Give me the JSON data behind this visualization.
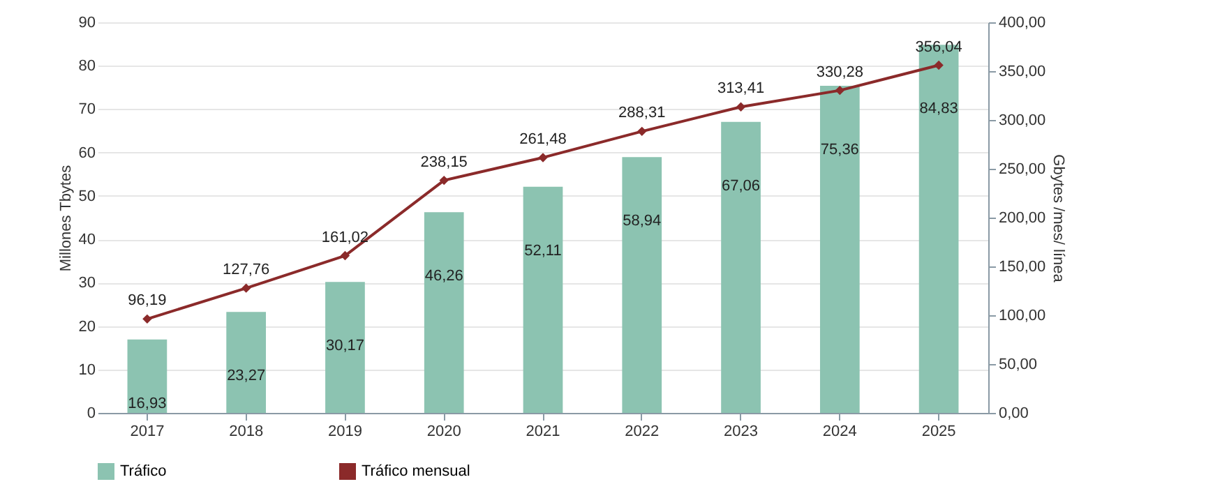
{
  "chart_data": {
    "type": "bar",
    "categories": [
      "2017",
      "2018",
      "2019",
      "2020",
      "2021",
      "2022",
      "2023",
      "2024",
      "2025"
    ],
    "ylabel": "Millones Tbytes",
    "y2label": "Gbytes /mes/ línea",
    "series": [
      {
        "name": "Tráfico",
        "color": "#8cc3b1",
        "values": [
          16.93,
          23.27,
          30.17,
          46.26,
          52.11,
          58.94,
          67.06,
          75.36,
          84.83
        ],
        "value_labels": [
          "16,93",
          "23,27",
          "30,17",
          "46,26",
          "52,11",
          "58,94",
          "67,06",
          "75,36",
          "84,83"
        ]
      },
      {
        "name": "Tráfico mensual",
        "type": "line",
        "axis": "y2",
        "marker": "diamond",
        "color": "#8b2a2a",
        "values": [
          96.19,
          127.76,
          161.02,
          238.15,
          261.48,
          288.31,
          313.41,
          330.28,
          356.04
        ],
        "value_labels": [
          "96,19",
          "127,76",
          "161,02",
          "238,15",
          "261,48",
          "288,31",
          "313,41",
          "330,28",
          "356,04"
        ]
      }
    ],
    "ylim": [
      0,
      90
    ],
    "yticks": [
      0,
      10,
      20,
      30,
      40,
      50,
      60,
      70,
      80,
      90
    ],
    "y2lim": [
      0,
      400
    ],
    "y2ticks": [
      {
        "value": 0,
        "label": "0,00"
      },
      {
        "value": 50,
        "label": "50,00"
      },
      {
        "value": 100,
        "label": "100,00"
      },
      {
        "value": 150,
        "label": "150,00"
      },
      {
        "value": 200,
        "label": "200,00"
      },
      {
        "value": 250,
        "label": "250,00"
      },
      {
        "value": 300,
        "label": "300,00"
      },
      {
        "value": 350,
        "label": "350,00"
      },
      {
        "value": 400,
        "label": "400,00"
      }
    ],
    "grid": "y",
    "legend": "bottom"
  }
}
